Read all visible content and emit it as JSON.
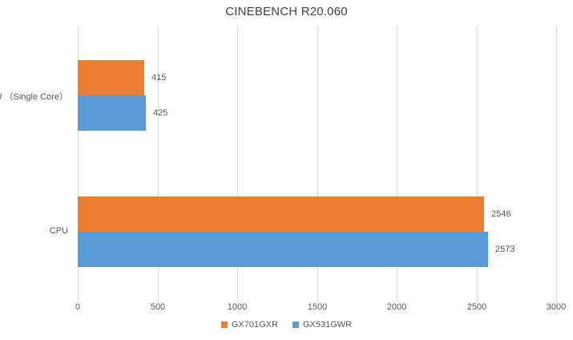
{
  "chart_data": {
    "type": "bar",
    "orientation": "horizontal",
    "title": "CINEBENCH R20.060",
    "categories": [
      "CPU （Single Core）",
      "CPU"
    ],
    "series": [
      {
        "name": "GX701GXR",
        "color": "#ED7D31",
        "values": [
          415,
          2546
        ]
      },
      {
        "name": "GX531GWR",
        "color": "#5B9BD5",
        "values": [
          425,
          2573
        ]
      }
    ],
    "data_labels": [
      [
        "415",
        "2546"
      ],
      [
        "425",
        "2573"
      ]
    ],
    "xlim": [
      0,
      3000
    ],
    "x_ticks": [
      "0",
      "500",
      "1000",
      "1500",
      "2000",
      "2500",
      "3000"
    ],
    "x_tick_values": [
      0,
      500,
      1000,
      1500,
      2000,
      2500,
      3000
    ],
    "grid": "vertical-major",
    "gridline_color": "#D9D9D9",
    "text_color": "#595959",
    "title_color": "#404040",
    "legend_position": "bottom-center"
  }
}
